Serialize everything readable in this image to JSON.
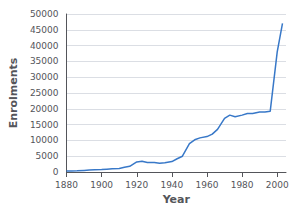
{
  "chart_data": {
    "type": "line",
    "x": [
      1880,
      1883,
      1886,
      1890,
      1893,
      1896,
      1900,
      1903,
      1906,
      1910,
      1913,
      1916,
      1920,
      1923,
      1926,
      1930,
      1933,
      1936,
      1940,
      1943,
      1946,
      1950,
      1953,
      1956,
      1960,
      1963,
      1966,
      1970,
      1973,
      1976,
      1980,
      1983,
      1986,
      1990,
      1993,
      1996,
      2000,
      2003
    ],
    "values": [
      300,
      330,
      370,
      500,
      600,
      700,
      800,
      900,
      1000,
      1100,
      1500,
      1800,
      3200,
      3400,
      3000,
      3000,
      2800,
      2900,
      3300,
      4200,
      5000,
      9000,
      10200,
      10800,
      11200,
      12000,
      13500,
      17000,
      18000,
      17500,
      18000,
      18500,
      18500,
      19000,
      19000,
      19200,
      38000,
      47000
    ],
    "color": "#3878c8",
    "xlabel": "Year",
    "ylabel": "Enrolments",
    "xlim": [
      1880,
      2005
    ],
    "ylim": [
      0,
      50000
    ],
    "xticks": [
      1880,
      1900,
      1920,
      1940,
      1960,
      1980,
      2000
    ],
    "yticks": [
      0,
      5000,
      10000,
      15000,
      20000,
      25000,
      30000,
      35000,
      40000,
      45000,
      50000
    ],
    "grid": true
  }
}
